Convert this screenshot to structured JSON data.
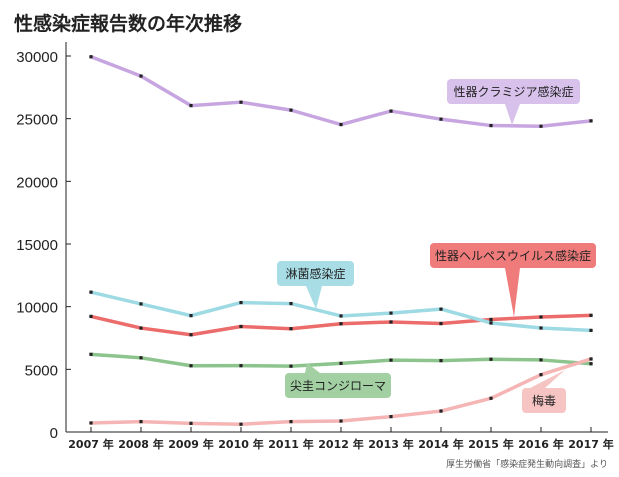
{
  "chart_data": {
    "type": "line",
    "title": "性感染症報告数の年次推移",
    "source": "厚生労働省「感染症発生動向調査」より",
    "categories": [
      "2007 年",
      "2008 年",
      "2009 年",
      "2010 年",
      "2011 年",
      "2012 年",
      "2013 年",
      "2014 年",
      "2015 年",
      "2016 年",
      "2017 年"
    ],
    "yticks": [
      "0",
      "5000",
      "10000",
      "15000",
      "20000",
      "25000",
      "30000"
    ],
    "ylim": [
      0,
      30000
    ],
    "grid": false,
    "series": [
      {
        "name": "性器クラミジア感染症",
        "color": "#c7a5e0",
        "label_bg": "#d8c2ec",
        "values": [
          29939,
          28398,
          26045,
          26315,
          25682,
          24530,
          25606,
          24960,
          24450,
          24397,
          24825
        ]
      },
      {
        "name": "性器ヘルペスウイルス感染症",
        "color": "#ec6b6b",
        "label_bg": "#ef7b7b",
        "values": [
          9223,
          8292,
          7760,
          8415,
          8240,
          8637,
          8778,
          8653,
          8974,
          9175,
          9308
        ]
      },
      {
        "name": "淋菌感染症",
        "color": "#9edae3",
        "label_bg": "#a8dde6",
        "values": [
          11157,
          10218,
          9285,
          10327,
          10247,
          9257,
          9488,
          9805,
          8698,
          8298,
          8107
        ]
      },
      {
        "name": "尖圭コンジローマ",
        "color": "#8dc48d",
        "label_bg": "#a2d0a2",
        "values": [
          6197,
          5919,
          5285,
          5291,
          5255,
          5477,
          5736,
          5693,
          5805,
          5750,
          5447
        ]
      },
      {
        "name": "梅毒",
        "color": "#f5b5b5",
        "label_bg": "#f7c4c4",
        "values": [
          719,
          827,
          691,
          621,
          827,
          875,
          1228,
          1671,
          2690,
          4575,
          5826
        ]
      }
    ]
  }
}
